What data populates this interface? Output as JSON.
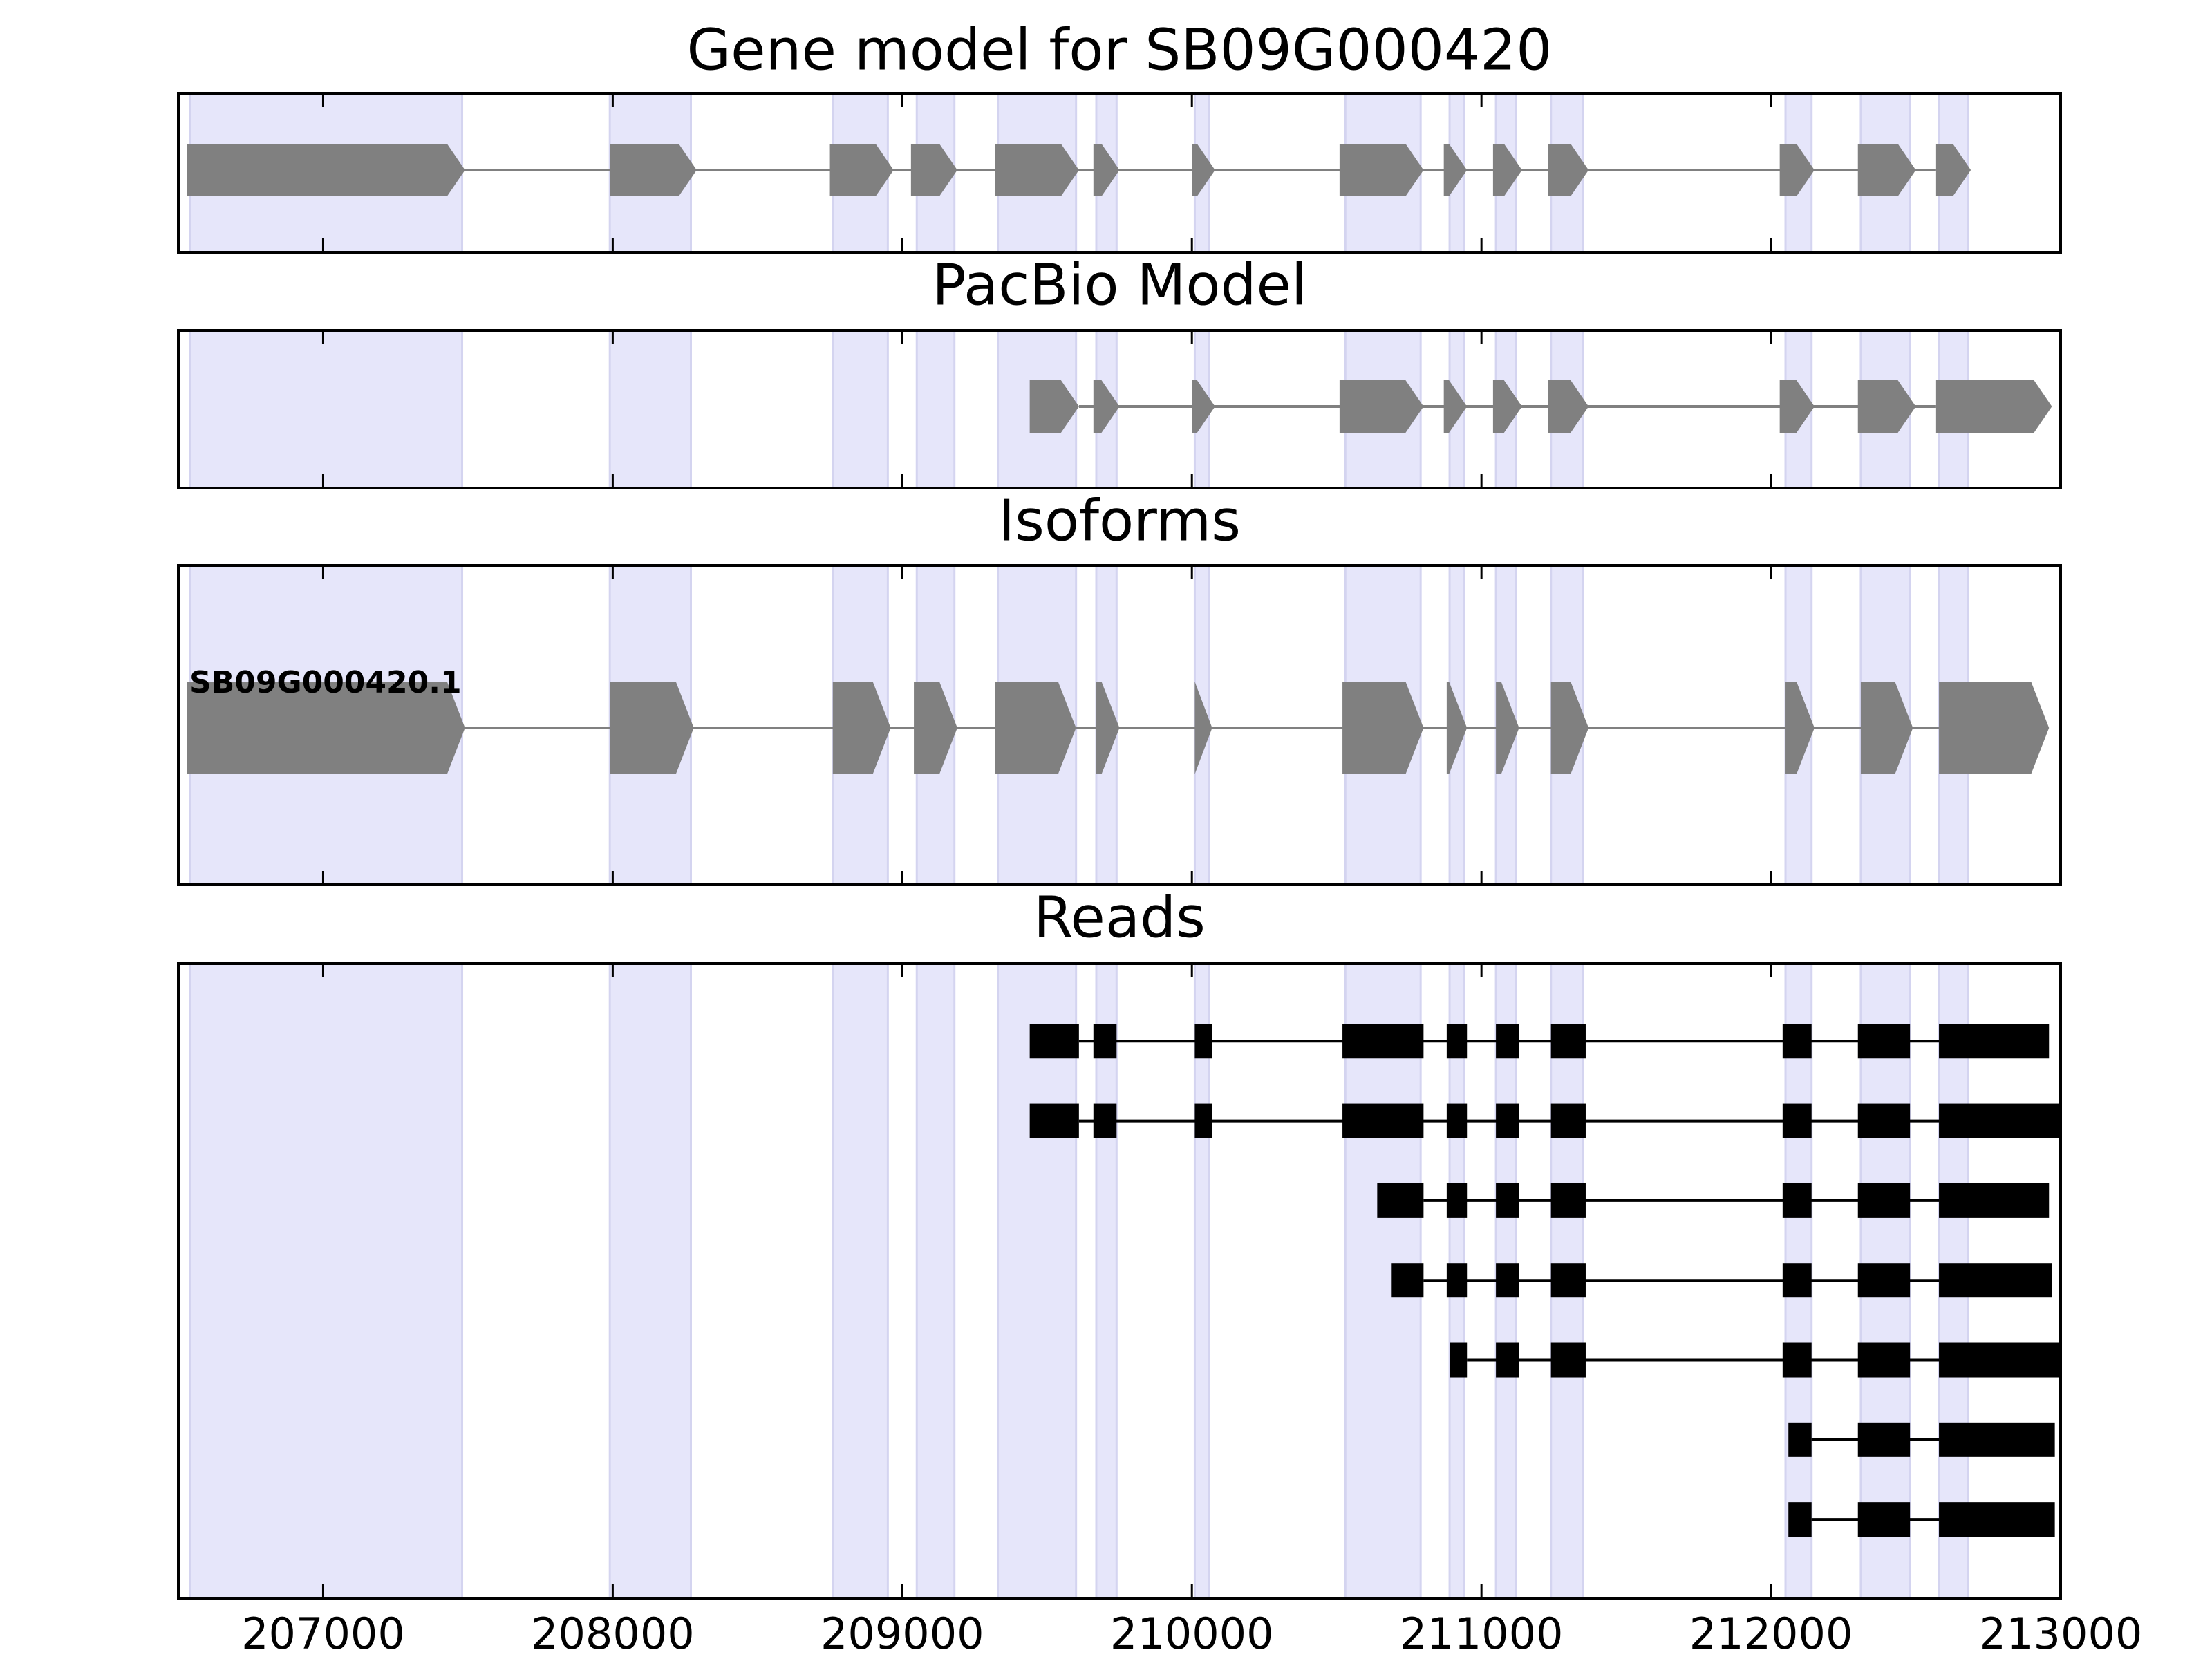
{
  "chart_data": {
    "type": "gene-track",
    "xlim": [
      206500,
      213000
    ],
    "xticks": [
      207000,
      208000,
      209000,
      210000,
      211000,
      212000,
      213000
    ],
    "bands": [
      [
        206540,
        207480
      ],
      [
        207990,
        208270
      ],
      [
        208760,
        208950
      ],
      [
        209050,
        209180
      ],
      [
        209330,
        209600
      ],
      [
        209670,
        209740
      ],
      [
        210010,
        210060
      ],
      [
        210530,
        210790
      ],
      [
        210890,
        210940
      ],
      [
        211050,
        211120
      ],
      [
        211240,
        211350
      ],
      [
        212050,
        212140
      ],
      [
        212310,
        212480
      ],
      [
        212580,
        212680
      ]
    ],
    "panels": [
      {
        "title": "Gene model for SB09G000420",
        "style": "arrows",
        "exons": [
          [
            206530,
            207490
          ],
          [
            207990,
            208290
          ],
          [
            208750,
            208970
          ],
          [
            209030,
            209190
          ],
          [
            209320,
            209610
          ],
          [
            209660,
            209750
          ],
          [
            210000,
            210080
          ],
          [
            210510,
            210800
          ],
          [
            210870,
            210950
          ],
          [
            211040,
            211140
          ],
          [
            211230,
            211370
          ],
          [
            212030,
            212150
          ],
          [
            212300,
            212500
          ],
          [
            212570,
            212690
          ]
        ]
      },
      {
        "title": "PacBio Model",
        "style": "arrows",
        "exons": [
          [
            209440,
            209610
          ],
          [
            209660,
            209750
          ],
          [
            210000,
            210080
          ],
          [
            210510,
            210800
          ],
          [
            210870,
            210950
          ],
          [
            211040,
            211140
          ],
          [
            211230,
            211370
          ],
          [
            212030,
            212150
          ],
          [
            212300,
            212500
          ],
          [
            212570,
            212970
          ]
        ]
      },
      {
        "title": "Isoforms",
        "style": "arrows",
        "label": "SB09G000420.1",
        "exons": [
          [
            206530,
            207490
          ],
          [
            207990,
            208280
          ],
          [
            208760,
            208960
          ],
          [
            209040,
            209190
          ],
          [
            209320,
            209600
          ],
          [
            209670,
            209750
          ],
          [
            210010,
            210070
          ],
          [
            210520,
            210800
          ],
          [
            210880,
            210950
          ],
          [
            211050,
            211130
          ],
          [
            211240,
            211370
          ],
          [
            212050,
            212150
          ],
          [
            212310,
            212490
          ],
          [
            212580,
            212960
          ]
        ]
      },
      {
        "title": "Reads",
        "style": "reads",
        "reads": [
          [
            [
              209440,
              209610
            ],
            [
              209660,
              209740
            ],
            [
              210010,
              210070
            ],
            [
              210520,
              210800
            ],
            [
              210880,
              210950
            ],
            [
              211050,
              211130
            ],
            [
              211240,
              211360
            ],
            [
              212040,
              212140
            ],
            [
              212300,
              212480
            ],
            [
              212580,
              212960
            ]
          ],
          [
            [
              209440,
              209610
            ],
            [
              209660,
              209740
            ],
            [
              210010,
              210070
            ],
            [
              210520,
              210800
            ],
            [
              210880,
              210950
            ],
            [
              211050,
              211130
            ],
            [
              211240,
              211360
            ],
            [
              212040,
              212140
            ],
            [
              212300,
              212480
            ],
            [
              212580,
              213000
            ]
          ],
          [
            [
              210640,
              210800
            ],
            [
              210880,
              210950
            ],
            [
              211050,
              211130
            ],
            [
              211240,
              211360
            ],
            [
              212040,
              212140
            ],
            [
              212300,
              212480
            ],
            [
              212580,
              212960
            ]
          ],
          [
            [
              210690,
              210800
            ],
            [
              210880,
              210950
            ],
            [
              211050,
              211130
            ],
            [
              211240,
              211360
            ],
            [
              212040,
              212140
            ],
            [
              212300,
              212480
            ],
            [
              212580,
              212970
            ]
          ],
          [
            [
              210890,
              210950
            ],
            [
              211050,
              211130
            ],
            [
              211240,
              211360
            ],
            [
              212040,
              212140
            ],
            [
              212300,
              212480
            ],
            [
              212580,
              213000
            ]
          ],
          [
            [
              212060,
              212140
            ],
            [
              212300,
              212480
            ],
            [
              212580,
              212980
            ]
          ],
          [
            [
              212060,
              212140
            ],
            [
              212300,
              212480
            ],
            [
              212580,
              212980
            ]
          ]
        ]
      }
    ]
  }
}
